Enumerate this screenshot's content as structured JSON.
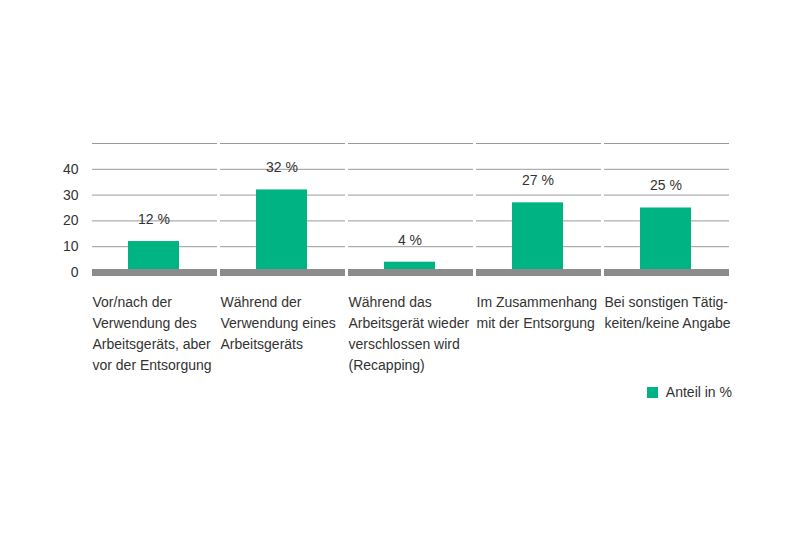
{
  "chart_data": {
    "type": "bar",
    "categories": [
      "Vor/nach der\nVerwendung des\nArbeitsgeräts, aber\nvor der Entsorgung",
      "Während der\nVerwendung eines\nArbeitsgeräts",
      "Während das\nArbeitsgerät wieder\nverschlossen wird\n(Recapping)",
      "Im Zusammenhang\nmit der Entsorgung",
      "Bei sonstigen Tätig-\nkeiten/keine Angabe"
    ],
    "series": [
      {
        "name": "Anteil in %",
        "color": "#00b383",
        "values": [
          12,
          32,
          4,
          27,
          25
        ],
        "value_labels": [
          "12 %",
          "32 %",
          "4 %",
          "27 %",
          "25 %"
        ]
      }
    ],
    "ylim": [
      0,
      50
    ],
    "yticks": [
      0,
      10,
      20,
      30,
      40
    ],
    "grid": true,
    "data_labels": true,
    "legend": "bottom-right"
  }
}
